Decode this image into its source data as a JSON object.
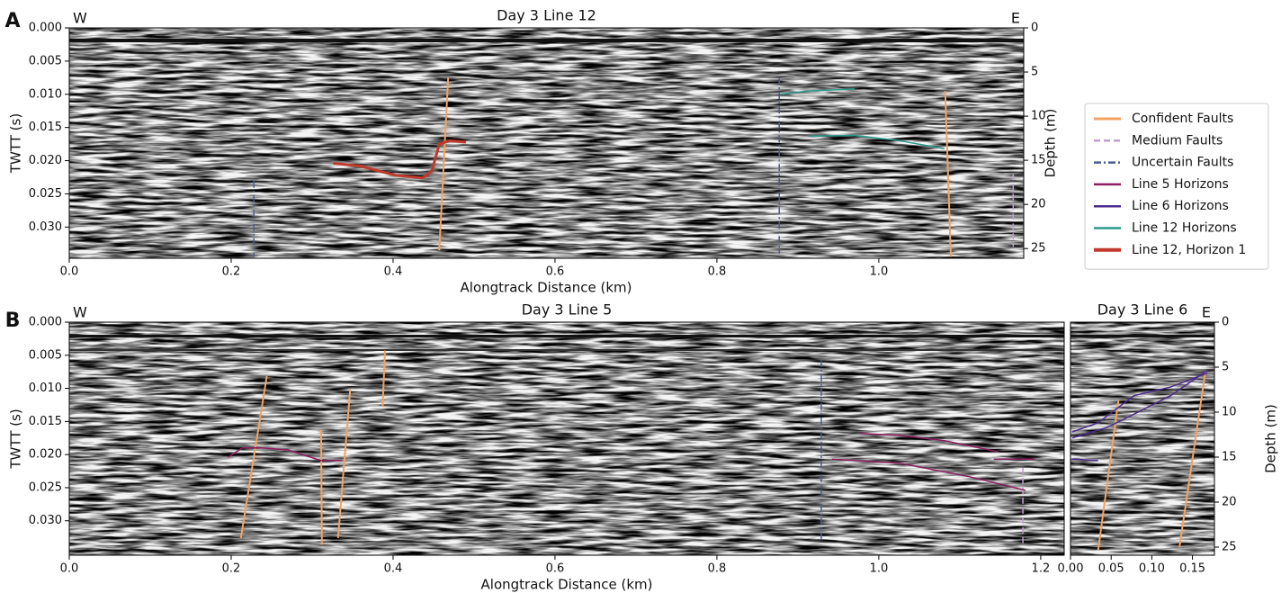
{
  "chart_data": [
    {
      "type": "line",
      "panel_label": "A",
      "title": "Day 3 Line 12",
      "west_label": "W",
      "east_label": "E",
      "xlabel": "Alongtrack Distance (km)",
      "ylabel": "TWTT (s)",
      "y2label": "Depth (m)",
      "xlim": [
        0,
        1.179
      ],
      "ylim": [
        0.0347,
        0
      ],
      "xticks": [
        {
          "value": 0,
          "label": "0.0"
        },
        {
          "value": 0.2,
          "label": "0.2"
        },
        {
          "value": 0.4,
          "label": "0.4"
        },
        {
          "value": 0.6,
          "label": "0.6"
        },
        {
          "value": 0.8,
          "label": "0.8"
        },
        {
          "value": 1.0,
          "label": "1.0"
        }
      ],
      "yticks": [
        {
          "value": 0,
          "label": "0.000"
        },
        {
          "value": 0.005,
          "label": "0.005"
        },
        {
          "value": 0.01,
          "label": "0.010"
        },
        {
          "value": 0.015,
          "label": "0.015"
        },
        {
          "value": 0.02,
          "label": "0.020"
        },
        {
          "value": 0.025,
          "label": "0.025"
        },
        {
          "value": 0.03,
          "label": "0.030"
        }
      ],
      "y2lim": [
        26.1,
        0
      ],
      "y2ticks": [
        0,
        5,
        10,
        15,
        20,
        25
      ],
      "series": [
        {
          "name": "Confident Faults",
          "lines": [
            {
              "x": [
                0.468,
                0.457
              ],
              "y": [
                0.0075,
                0.0335
              ]
            },
            {
              "x": [
                1.082,
                1.089
              ],
              "y": [
                0.0095,
                0.0345
              ]
            }
          ]
        },
        {
          "name": "Medium Faults",
          "lines": [
            {
              "x": [
                1.166,
                1.166
              ],
              "y": [
                0.022,
                0.033
              ]
            }
          ]
        },
        {
          "name": "Uncertain Faults",
          "lines": [
            {
              "x": [
                0.228,
                0.228
              ],
              "y": [
                0.023,
                0.0345
              ]
            },
            {
              "x": [
                0.877,
                0.877
              ],
              "y": [
                0.0075,
                0.034
              ]
            }
          ]
        },
        {
          "name": "Line 12 Horizons",
          "lines": [
            {
              "x": [
                0.878,
                0.914,
                0.97
              ],
              "y": [
                0.01,
                0.0095,
                0.0092
              ]
            },
            {
              "x": [
                0.914,
                0.97,
                1.026,
                1.081
              ],
              "y": [
                0.0163,
                0.0162,
                0.017,
                0.0182
              ]
            }
          ]
        },
        {
          "name": "Line 12, Horizon 1",
          "lines": [
            {
              "x": [
                0.326,
                0.359,
                0.403,
                0.437,
                0.448,
                0.457,
                0.47,
                0.49
              ],
              "y": [
                0.0204,
                0.0208,
                0.0222,
                0.0226,
                0.0215,
                0.0175,
                0.017,
                0.0172
              ]
            }
          ]
        }
      ]
    },
    {
      "type": "line",
      "panel_label": "B",
      "title": "Day 3 Line 5",
      "west_label": "W",
      "xlabel": "Alongtrack Distance (km)",
      "ylabel": "TWTT (s)",
      "xlim": [
        0,
        1.229
      ],
      "ylim": [
        0.0352,
        0
      ],
      "xticks": [
        {
          "value": 0,
          "label": "0.0"
        },
        {
          "value": 0.2,
          "label": "0.2"
        },
        {
          "value": 0.4,
          "label": "0.4"
        },
        {
          "value": 0.6,
          "label": "0.6"
        },
        {
          "value": 0.8,
          "label": "0.8"
        },
        {
          "value": 1.0,
          "label": "1.0"
        },
        {
          "value": 1.2,
          "label": "1.2"
        }
      ],
      "yticks": [
        {
          "value": 0,
          "label": "0.000"
        },
        {
          "value": 0.005,
          "label": "0.005"
        },
        {
          "value": 0.01,
          "label": "0.010"
        },
        {
          "value": 0.015,
          "label": "0.015"
        },
        {
          "value": 0.02,
          "label": "0.020"
        },
        {
          "value": 0.025,
          "label": "0.025"
        },
        {
          "value": 0.03,
          "label": "0.030"
        }
      ],
      "series": [
        {
          "name": "Confident Faults",
          "lines": [
            {
              "x": [
                0.244,
                0.212
              ],
              "y": [
                0.00815,
                0.0326
              ]
            },
            {
              "x": [
                0.311,
                0.312
              ],
              "y": [
                0.0163,
                0.0336
              ]
            },
            {
              "x": [
                0.347,
                0.332
              ],
              "y": [
                0.0101,
                0.0326
              ]
            },
            {
              "x": [
                0.39,
                0.387
              ],
              "y": [
                0.0043,
                0.0128
              ]
            }
          ]
        },
        {
          "name": "Medium Faults",
          "lines": [
            {
              "x": [
                1.178,
                1.178
              ],
              "y": [
                0.022,
                0.0336
              ]
            }
          ]
        },
        {
          "name": "Uncertain Faults",
          "lines": [
            {
              "x": [
                0.929,
                0.929
              ],
              "y": [
                0.0057,
                0.0329
              ]
            }
          ]
        },
        {
          "name": "Line 5 Horizons",
          "lines": [
            {
              "x": [
                0.196,
                0.214,
                0.237,
                0.27,
                0.311,
                0.337
              ],
              "y": [
                0.0204,
                0.019,
                0.019,
                0.0193,
                0.0209,
                0.0209
              ]
            },
            {
              "x": [
                0.976,
                1.026,
                1.081,
                1.148
              ],
              "y": [
                0.0168,
                0.0171,
                0.0179,
                0.0196
              ]
            },
            {
              "x": [
                0.942,
                1.026,
                1.114,
                1.181
              ],
              "y": [
                0.0207,
                0.0213,
                0.0234,
                0.0254
              ]
            },
            {
              "x": [
                1.142,
                1.192
              ],
              "y": [
                0.0207,
                0.0207
              ]
            }
          ]
        }
      ]
    },
    {
      "type": "line",
      "title": "Day 3 Line 6",
      "east_label": "E",
      "y2label": "Depth (m)",
      "xlim": [
        0,
        0.177
      ],
      "ylim": [
        0.0352,
        0
      ],
      "xticks": [
        {
          "value": 0,
          "label": "0.00"
        },
        {
          "value": 0.05,
          "label": "0.05"
        },
        {
          "value": 0.1,
          "label": "0.10"
        },
        {
          "value": 0.15,
          "label": "0.15"
        }
      ],
      "y2lim": [
        25.9,
        0
      ],
      "y2ticks": [
        0,
        5,
        10,
        15,
        20,
        25
      ],
      "series": [
        {
          "name": "Confident Faults",
          "lines": [
            {
              "x": [
                0.059,
                0.034
              ],
              "y": [
                0.0118,
                0.0345
              ]
            },
            {
              "x": [
                0.166,
                0.134
              ],
              "y": [
                0.0073,
                0.034
              ]
            }
          ]
        },
        {
          "name": "Line 6 Horizons",
          "lines": [
            {
              "x": [
                0.002,
                0.034,
                0.078,
                0.123,
                0.168
              ],
              "y": [
                0.0166,
                0.0152,
                0.0111,
                0.0098,
                0.0077
              ]
            },
            {
              "x": [
                0.002,
                0.045,
                0.078,
                0.123,
                0.168
              ],
              "y": [
                0.0175,
                0.0159,
                0.0139,
                0.0111,
                0.0073
              ]
            },
            {
              "x": [
                0.002,
                0.034
              ],
              "y": [
                0.0207,
                0.0209
              ]
            }
          ]
        }
      ]
    }
  ],
  "legend": [
    {
      "name": "Confident Faults",
      "color": "#f4a261",
      "linestyle": "solid",
      "linewidth": 2
    },
    {
      "name": "Medium Faults",
      "color": "#c49bd6",
      "linestyle": "dashed",
      "linewidth": 1.5
    },
    {
      "name": "Uncertain Faults",
      "color": "#4a5d8f",
      "linestyle": "dashdot",
      "linewidth": 1.5
    },
    {
      "name": "Line 5 Horizons",
      "color": "#8c1d5e",
      "linestyle": "solid",
      "linewidth": 1.5
    },
    {
      "name": "Line 6 Horizons",
      "color": "#4b2a8f",
      "linestyle": "solid",
      "linewidth": 1.5
    },
    {
      "name": "Line 12 Horizons",
      "color": "#2a9a8a",
      "linestyle": "solid",
      "linewidth": 1.5
    },
    {
      "name": "Line 12, Horizon 1",
      "color": "#c0392b",
      "linestyle": "solid",
      "linewidth": 3
    }
  ]
}
